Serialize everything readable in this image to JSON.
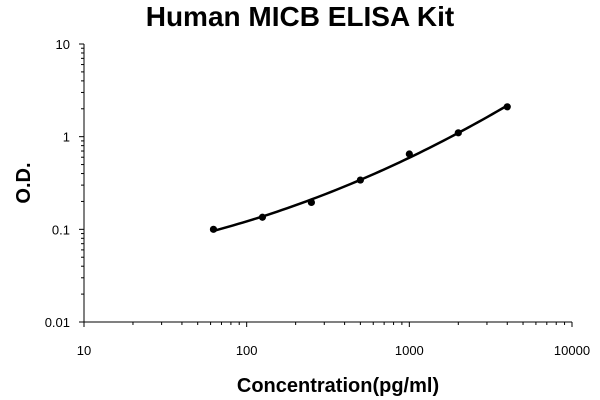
{
  "chart_data": {
    "type": "scatter",
    "title": "Human MICB ELISA Kit",
    "xlabel": "Concentration(pg/ml)",
    "ylabel": "O.D.",
    "x_scale": "log",
    "y_scale": "log",
    "xlim": [
      10,
      10000
    ],
    "ylim": [
      0.01,
      10
    ],
    "x_ticks": [
      10,
      100,
      1000,
      10000
    ],
    "x_tick_labels": [
      "10",
      "100",
      "1000",
      "10000"
    ],
    "y_ticks": [
      0.01,
      0.1,
      1,
      10
    ],
    "y_tick_labels": [
      "0.01",
      "0.1",
      "1",
      "10"
    ],
    "grid": false,
    "legend": "none",
    "series": [
      {
        "x": [
          62.5,
          125,
          250,
          500,
          1000,
          2000,
          4000
        ],
        "y": [
          0.1,
          0.135,
          0.195,
          0.34,
          0.65,
          1.1,
          2.1
        ]
      }
    ],
    "colors": {
      "line": "#000000",
      "axis": "#000000"
    }
  }
}
